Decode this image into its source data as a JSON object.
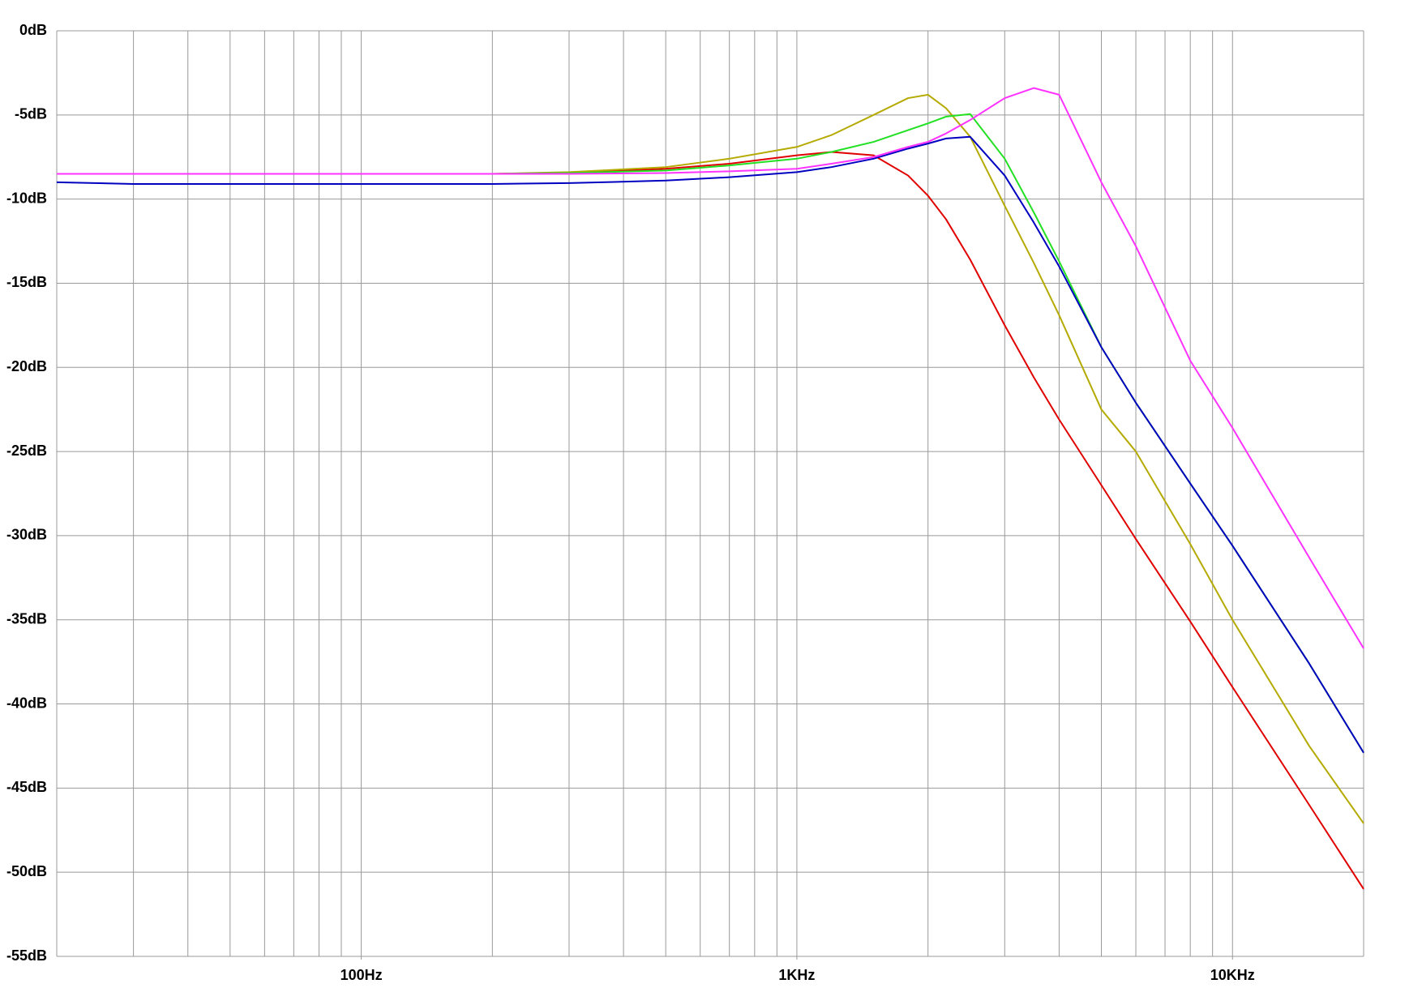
{
  "chart_data": {
    "type": "line",
    "x_scale": "log",
    "y_scale": "linear",
    "grid": true,
    "x": [
      20,
      30,
      50,
      100,
      200,
      300,
      500,
      700,
      1000,
      1200,
      1500,
      1800,
      2000,
      2200,
      2500,
      3000,
      3500,
      4000,
      5000,
      6000,
      8000,
      10000,
      15000,
      20000
    ],
    "xlim": [
      20,
      20000
    ],
    "xticks": [
      {
        "value": 100,
        "label": "100Hz"
      },
      {
        "value": 1000,
        "label": "1KHz"
      },
      {
        "value": 10000,
        "label": "10KHz"
      }
    ],
    "xgrid": [
      20,
      30,
      40,
      50,
      60,
      70,
      80,
      90,
      100,
      200,
      300,
      400,
      500,
      600,
      700,
      800,
      900,
      1000,
      2000,
      3000,
      4000,
      5000,
      6000,
      7000,
      8000,
      9000,
      10000,
      20000
    ],
    "ylim": [
      -55,
      0
    ],
    "yticks": [
      {
        "value": 0,
        "label": "0dB"
      },
      {
        "value": -5,
        "label": "-5dB"
      },
      {
        "value": -10,
        "label": "-10dB"
      },
      {
        "value": -15,
        "label": "-15dB"
      },
      {
        "value": -20,
        "label": "-20dB"
      },
      {
        "value": -25,
        "label": "-25dB"
      },
      {
        "value": -30,
        "label": "-30dB"
      },
      {
        "value": -35,
        "label": "-35dB"
      },
      {
        "value": -40,
        "label": "-40dB"
      },
      {
        "value": -45,
        "label": "-45dB"
      },
      {
        "value": -50,
        "label": "-50dB"
      },
      {
        "value": -55,
        "label": "-55dB"
      }
    ],
    "series": [
      {
        "color": "#e00000",
        "values": [
          -8.5,
          -8.5,
          -8.5,
          -8.5,
          -8.5,
          -8.45,
          -8.2,
          -7.9,
          -7.4,
          -7.2,
          -7.4,
          -8.6,
          -9.8,
          -11.2,
          -13.6,
          -17.5,
          -20.6,
          -23.1,
          -27.0,
          -30.2,
          -35.1,
          -39.0,
          -46.0,
          -51.0
        ]
      },
      {
        "color": "#b4aa00",
        "values": [
          -8.5,
          -8.5,
          -8.5,
          -8.5,
          -8.5,
          -8.4,
          -8.1,
          -7.6,
          -6.9,
          -6.2,
          -5.0,
          -4.0,
          -3.8,
          -4.6,
          -6.3,
          -10.4,
          -13.8,
          -16.9,
          -22.5,
          -25.0,
          -30.5,
          -35.0,
          -42.5,
          -47.1
        ]
      },
      {
        "color": "#22e022",
        "values": [
          -8.5,
          -8.5,
          -8.5,
          -8.5,
          -8.5,
          -8.45,
          -8.3,
          -8.0,
          -7.6,
          -7.2,
          -6.6,
          -5.9,
          -5.5,
          -5.1,
          -4.95,
          -7.6,
          -10.8,
          -13.7,
          -18.8,
          -22.1,
          -26.9,
          -30.6,
          -37.6,
          -42.9
        ]
      },
      {
        "color": "#0000c0",
        "values": [
          -9.0,
          -9.1,
          -9.1,
          -9.1,
          -9.1,
          -9.05,
          -8.9,
          -8.7,
          -8.4,
          -8.1,
          -7.6,
          -7.0,
          -6.7,
          -6.4,
          -6.3,
          -8.6,
          -11.4,
          -14.0,
          -18.8,
          -22.1,
          -26.9,
          -30.6,
          -37.6,
          -42.9
        ]
      },
      {
        "color": "#ff33ff",
        "values": [
          -8.5,
          -8.5,
          -8.5,
          -8.5,
          -8.5,
          -8.5,
          -8.45,
          -8.35,
          -8.2,
          -7.9,
          -7.5,
          -6.9,
          -6.6,
          -6.1,
          -5.3,
          -4.0,
          -3.4,
          -3.8,
          -9.0,
          -12.8,
          -19.6,
          -23.6,
          -31.3,
          -36.7
        ]
      }
    ]
  }
}
